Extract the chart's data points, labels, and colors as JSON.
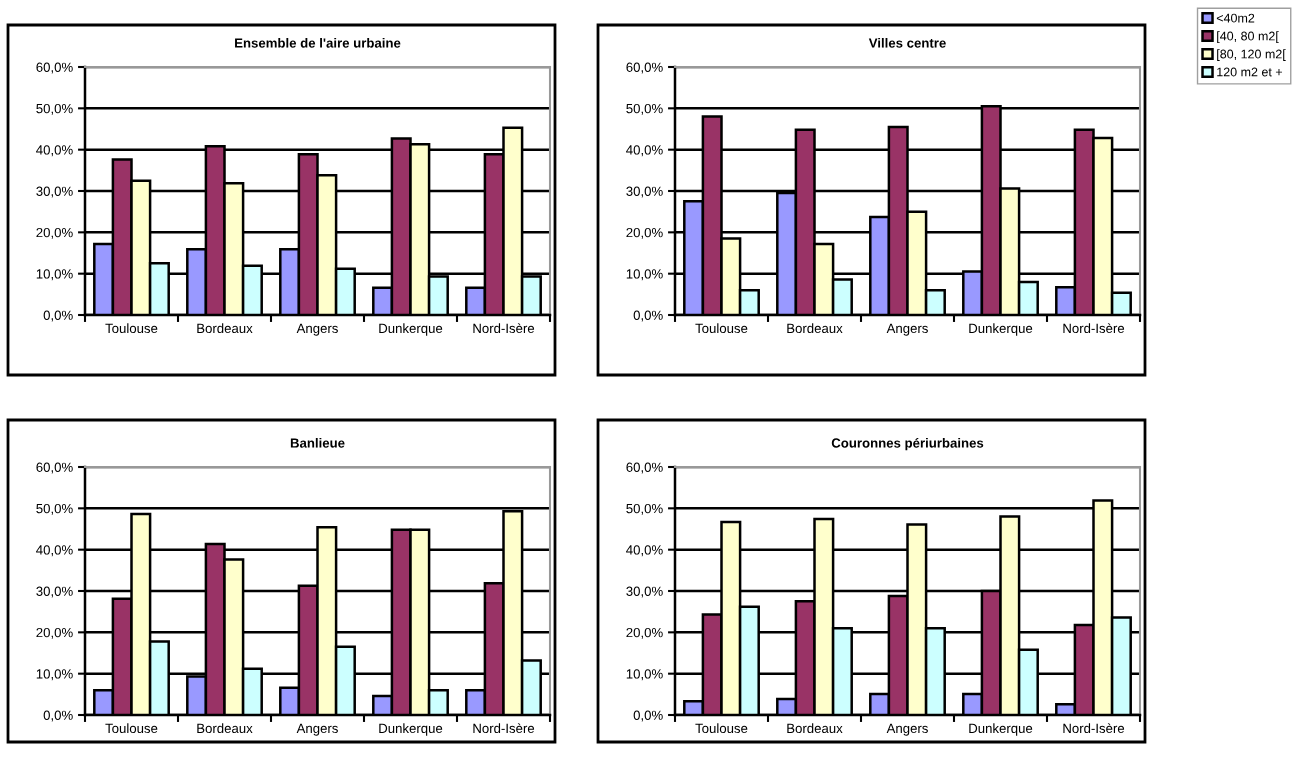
{
  "chart_data": [
    {
      "type": "bar",
      "title": "Ensemble de l'aire urbaine",
      "categories": [
        "Toulouse",
        "Bordeaux",
        "Angers",
        "Dunkerque",
        "Nord-Isère"
      ],
      "series": [
        {
          "name": "<40m2",
          "color": "#9999ff",
          "values": [
            17.2,
            15.9,
            15.9,
            6.6,
            6.6
          ]
        },
        {
          "name": "[40, 80 m2[",
          "color": "#993366",
          "values": [
            37.6,
            40.8,
            38.9,
            42.7,
            38.9
          ]
        },
        {
          "name": "[80, 120 m2[",
          "color": "#ffffcc",
          "values": [
            32.5,
            31.9,
            33.8,
            41.3,
            45.3
          ]
        },
        {
          "name": "120 m2 et +",
          "color": "#ccffff",
          "values": [
            12.5,
            11.9,
            11.2,
            9.3,
            9.3
          ]
        }
      ],
      "ylim": [
        0,
        60
      ],
      "yticks": [
        {
          "value": 0,
          "label": "0,0%"
        },
        {
          "value": 10,
          "label": "10,0%"
        },
        {
          "value": 20,
          "label": "20,0%"
        },
        {
          "value": 30,
          "label": "30,0%"
        },
        {
          "value": 40,
          "label": "40,0%"
        },
        {
          "value": 50,
          "label": "50,0%"
        },
        {
          "value": 60,
          "label": "60,0%"
        }
      ],
      "grid": "y",
      "legend": "top right"
    },
    {
      "type": "bar",
      "title": "Villes centre",
      "categories": [
        "Toulouse",
        "Bordeaux",
        "Angers",
        "Dunkerque",
        "Nord-Isère"
      ],
      "series": [
        {
          "color": "#9999ff",
          "values": [
            27.5,
            29.5,
            23.7,
            10.5,
            6.7
          ]
        },
        {
          "color": "#993366",
          "values": [
            48.0,
            44.8,
            45.5,
            50.5,
            44.8
          ]
        },
        {
          "color": "#ffffcc",
          "values": [
            18.5,
            17.2,
            25.0,
            30.6,
            42.8
          ]
        },
        {
          "color": "#ccffff",
          "values": [
            6.0,
            8.6,
            6.0,
            8.0,
            5.4
          ]
        }
      ],
      "ylim": [
        0,
        60
      ],
      "yticks": [
        {
          "value": 0,
          "label": "0,0%"
        },
        {
          "value": 10,
          "label": "10,0%"
        },
        {
          "value": 20,
          "label": "20,0%"
        },
        {
          "value": 30,
          "label": "30,0%"
        },
        {
          "value": 40,
          "label": "40,0%"
        },
        {
          "value": 50,
          "label": "50,0%"
        },
        {
          "value": 60,
          "label": "60,0%"
        }
      ],
      "grid": "y",
      "legend": false
    },
    {
      "type": "bar",
      "title": "Banlieue",
      "categories": [
        "Toulouse",
        "Bordeaux",
        "Angers",
        "Dunkerque",
        "Nord-Isère"
      ],
      "series": [
        {
          "color": "#9999ff",
          "values": [
            6.0,
            9.3,
            6.6,
            4.6,
            6.0
          ]
        },
        {
          "color": "#993366",
          "values": [
            28.1,
            41.4,
            31.3,
            44.8,
            31.9
          ]
        },
        {
          "color": "#ffffcc",
          "values": [
            48.6,
            37.6,
            45.4,
            44.8,
            49.3
          ]
        },
        {
          "color": "#ccffff",
          "values": [
            17.8,
            11.2,
            16.5,
            6.0,
            13.2
          ]
        }
      ],
      "ylim": [
        0,
        60
      ],
      "yticks": [
        {
          "value": 0,
          "label": "0,0%"
        },
        {
          "value": 10,
          "label": "10,0%"
        },
        {
          "value": 20,
          "label": "20,0%"
        },
        {
          "value": 30,
          "label": "30,0%"
        },
        {
          "value": 40,
          "label": "40,0%"
        },
        {
          "value": 50,
          "label": "50,0%"
        },
        {
          "value": 60,
          "label": "60,0%"
        }
      ],
      "grid": "y",
      "legend": false
    },
    {
      "type": "bar",
      "title": "Couronnes périurbaines",
      "categories": [
        "Toulouse",
        "Bordeaux",
        "Angers",
        "Dunkerque",
        "Nord-Isère"
      ],
      "series": [
        {
          "color": "#9999ff",
          "values": [
            3.3,
            3.9,
            5.1,
            5.1,
            2.6
          ]
        },
        {
          "color": "#993366",
          "values": [
            24.3,
            27.5,
            28.8,
            30.0,
            21.8
          ]
        },
        {
          "color": "#ffffcc",
          "values": [
            46.7,
            47.4,
            46.1,
            48.0,
            51.9
          ]
        },
        {
          "color": "#ccffff",
          "values": [
            26.2,
            21.0,
            21.0,
            15.8,
            23.6
          ]
        }
      ],
      "ylim": [
        0,
        60
      ],
      "yticks": [
        {
          "value": 0,
          "label": "0,0%"
        },
        {
          "value": 10,
          "label": "10,0%"
        },
        {
          "value": 20,
          "label": "20,0%"
        },
        {
          "value": 30,
          "label": "30,0%"
        },
        {
          "value": 40,
          "label": "40,0%"
        },
        {
          "value": 50,
          "label": "50,0%"
        },
        {
          "value": 60,
          "label": "60,0%"
        }
      ],
      "grid": "y",
      "legend": false
    }
  ]
}
